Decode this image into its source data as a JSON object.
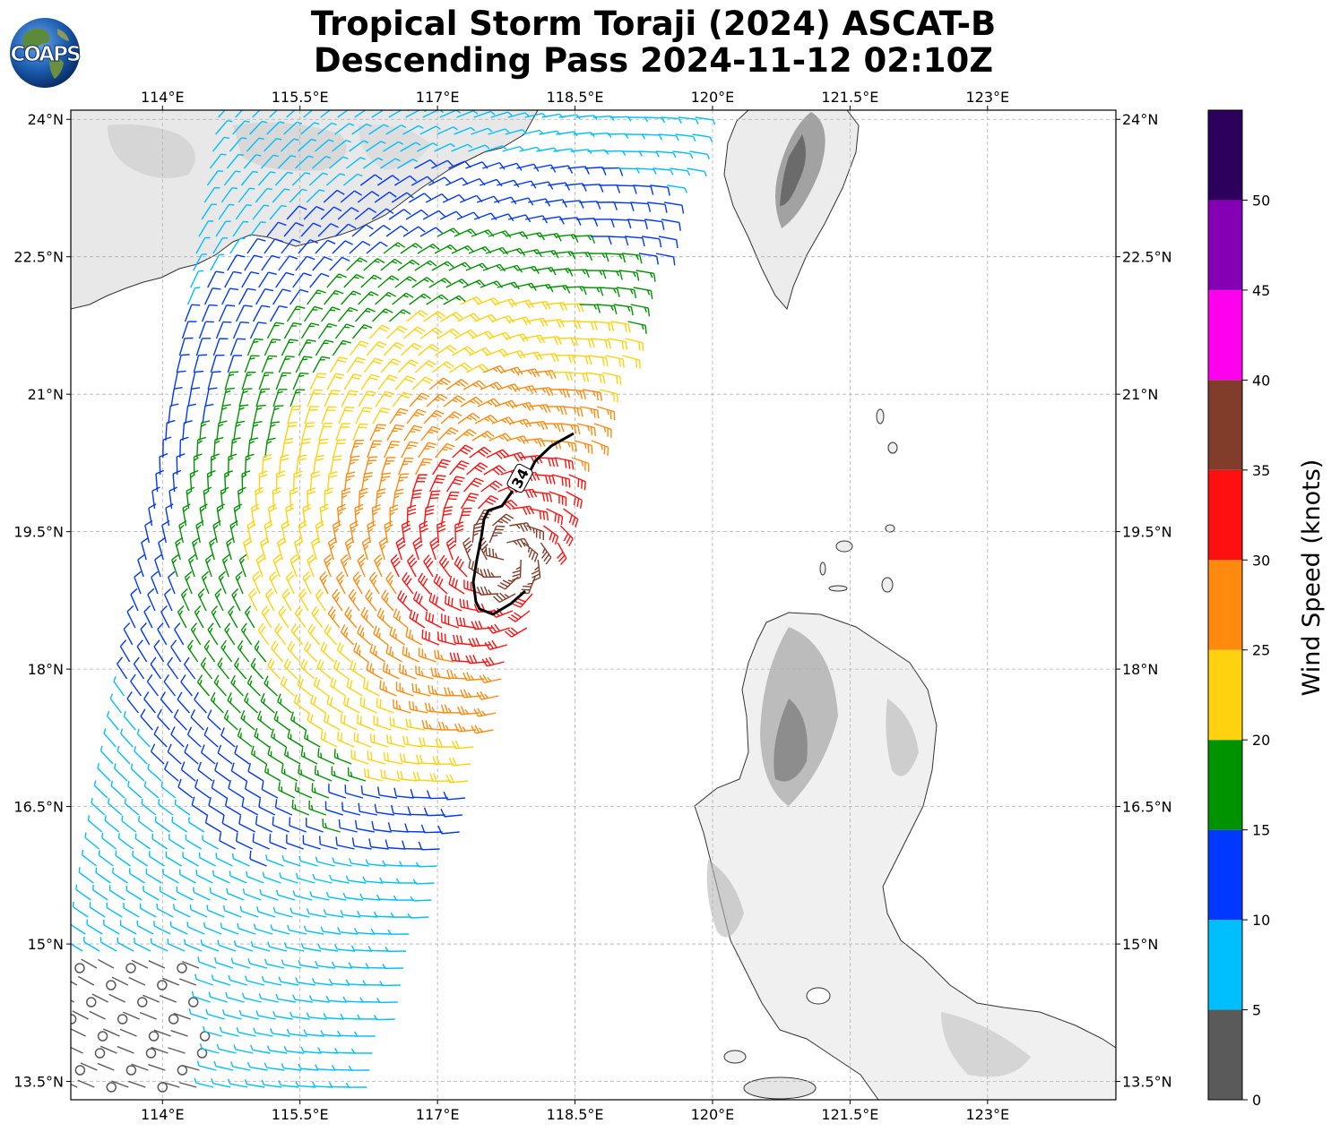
{
  "title": {
    "line1": "Tropical Storm Toraji (2024) ASCAT-B",
    "line2": "Descending Pass 2024-11-12 02:10Z"
  },
  "logo": {
    "text": "COAPS",
    "icon": "globe-logo-icon"
  },
  "map": {
    "lon_ticks": [
      "114°E",
      "115.5°E",
      "117°E",
      "118.5°E",
      "120°E",
      "121.5°E",
      "123°E"
    ],
    "lat_ticks": [
      "24°N",
      "22.5°N",
      "21°N",
      "19.5°N",
      "18°N",
      "16.5°N",
      "15°N",
      "13.5°N"
    ],
    "lon_range": [
      113.0,
      124.4
    ],
    "lat_range": [
      13.3,
      24.1
    ],
    "contour_label": "34",
    "land_shading": "gray terrain",
    "grid": true
  },
  "colorbar": {
    "label": "Wind Speed (knots)",
    "tick_labels": [
      "0",
      "5",
      "10",
      "15",
      "20",
      "25",
      "30",
      "35",
      "40",
      "45",
      "50"
    ],
    "bins": [
      {
        "min": 0,
        "max": 5,
        "color": "#5a5a5a"
      },
      {
        "min": 5,
        "max": 10,
        "color": "#00bfff"
      },
      {
        "min": 10,
        "max": 15,
        "color": "#0038ff"
      },
      {
        "min": 15,
        "max": 20,
        "color": "#009300"
      },
      {
        "min": 20,
        "max": 25,
        "color": "#ffd20f"
      },
      {
        "min": 25,
        "max": 30,
        "color": "#ff8a0e"
      },
      {
        "min": 30,
        "max": 35,
        "color": "#ff1010"
      },
      {
        "min": 35,
        "max": 40,
        "color": "#813d29"
      },
      {
        "min": 40,
        "max": 45,
        "color": "#ff00ee"
      },
      {
        "min": 45,
        "max": 50,
        "color": "#8500b4"
      },
      {
        "min": 50,
        "max": 55,
        "color": "#2e005e"
      }
    ]
  }
}
